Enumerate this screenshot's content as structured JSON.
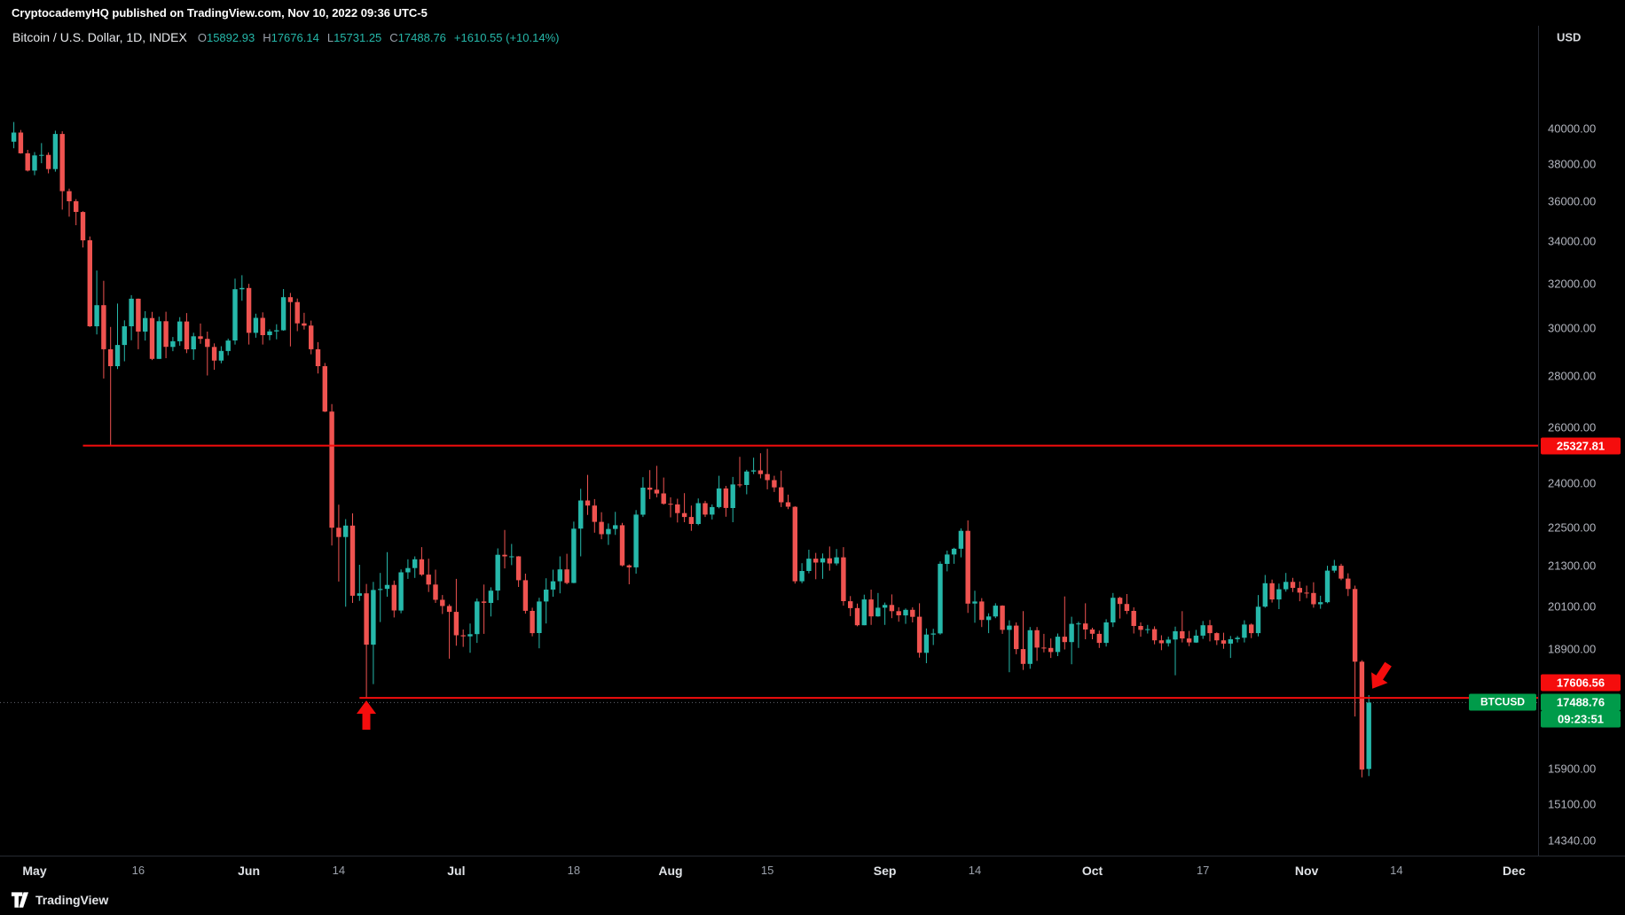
{
  "publish_bar": {
    "text": "CryptocademyHQ published on TradingView.com, Nov 10, 2022 09:36 UTC-5"
  },
  "header": {
    "symbol": "Bitcoin / U.S. Dollar, 1D, INDEX",
    "ohlc": [
      {
        "k": "O",
        "v": "15892.93"
      },
      {
        "k": "H",
        "v": "17676.14"
      },
      {
        "k": "L",
        "v": "15731.25"
      },
      {
        "k": "C",
        "v": "17488.76"
      }
    ],
    "change": "+1610.55 (+10.14%)"
  },
  "price_axis": {
    "currency": "USD",
    "ticks": [
      "40000.00",
      "38000.00",
      "36000.00",
      "34000.00",
      "32000.00",
      "30000.00",
      "28000.00",
      "26000.00",
      "24000.00",
      "22500.00",
      "21300.00",
      "20100.00",
      "18900.00",
      "15900.00",
      "15100.00",
      "14340.00"
    ],
    "labels": {
      "resistance": "25327.81",
      "support": "17606.56",
      "last_price": "17488.76",
      "countdown": "09:23:51",
      "symbol_tag": "BTCUSD"
    }
  },
  "time_axis": {
    "ticks": [
      {
        "label": "May",
        "day": 3,
        "major": true
      },
      {
        "label": "16",
        "day": 18,
        "major": false
      },
      {
        "label": "Jun",
        "day": 34,
        "major": true
      },
      {
        "label": "14",
        "day": 47,
        "major": false
      },
      {
        "label": "Jul",
        "day": 64,
        "major": true
      },
      {
        "label": "18",
        "day": 81,
        "major": false
      },
      {
        "label": "Aug",
        "day": 95,
        "major": true
      },
      {
        "label": "15",
        "day": 109,
        "major": false
      },
      {
        "label": "Sep",
        "day": 126,
        "major": true
      },
      {
        "label": "14",
        "day": 139,
        "major": false
      },
      {
        "label": "Oct",
        "day": 156,
        "major": true
      },
      {
        "label": "17",
        "day": 172,
        "major": false
      },
      {
        "label": "Nov",
        "day": 187,
        "major": true
      },
      {
        "label": "14",
        "day": 200,
        "major": false
      },
      {
        "label": "Dec",
        "day": 217,
        "major": true
      }
    ]
  },
  "watermark": {
    "brand": "TradingView"
  },
  "colors": {
    "up": "#26b8aa",
    "down": "#ef5350",
    "annotation": "#f50d0d",
    "badge_green": "#009b4a",
    "axis_text": "#b2b5be",
    "background": "#000000"
  },
  "chart_data": {
    "type": "candlestick",
    "symbol": "BTCUSD",
    "title": "Bitcoin / U.S. Dollar",
    "interval": "1D",
    "exchange": "INDEX",
    "start_date": "2022-04-28",
    "last_candle": {
      "open": 15892.93,
      "high": 17676.14,
      "low": 15731.25,
      "close": 17488.76,
      "change": 1610.55,
      "change_pct": 10.14
    },
    "y_axis": {
      "scale": "log",
      "visible_range": [
        13970,
        46400
      ]
    },
    "x_axis": {
      "visible_range": [
        "2022-04-28",
        "2022-12-05"
      ]
    },
    "horizontal_lines": [
      {
        "name": "resistance-line",
        "price": 25327.81,
        "from_day": 10
      },
      {
        "name": "support-line",
        "price": 17606.56,
        "from_day": 50
      }
    ],
    "annotations": [
      {
        "type": "arrow-up",
        "at": "june-low",
        "day": 51
      },
      {
        "type": "arrow-down",
        "at": "november-recovery",
        "day": 197
      }
    ],
    "candles": [
      [
        39250,
        40380,
        38880,
        39770
      ],
      [
        39770,
        39920,
        38580,
        38600
      ],
      [
        38600,
        38790,
        37600,
        37650
      ],
      [
        37650,
        38670,
        37400,
        38480
      ],
      [
        38480,
        39170,
        38050,
        38510
      ],
      [
        38510,
        38650,
        37500,
        37730
      ],
      [
        37730,
        39880,
        37590,
        39690
      ],
      [
        39690,
        39840,
        35590,
        36550
      ],
      [
        36550,
        36680,
        35230,
        36020
      ],
      [
        36020,
        36130,
        34800,
        35470
      ],
      [
        35470,
        35510,
        33700,
        34050
      ],
      [
        34050,
        34240,
        30050,
        30080
      ],
      [
        30080,
        32600,
        29730,
        31010
      ],
      [
        31010,
        32120,
        27900,
        29100
      ],
      [
        29100,
        30050,
        25327.81,
        28400
      ],
      [
        28400,
        31080,
        28280,
        29280
      ],
      [
        29280,
        30340,
        28600,
        30080
      ],
      [
        30080,
        31460,
        29480,
        31300
      ],
      [
        31300,
        31310,
        29100,
        29850
      ],
      [
        29850,
        30740,
        29470,
        30440
      ],
      [
        30440,
        30710,
        28650,
        28700
      ],
      [
        28700,
        30500,
        28700,
        30300
      ],
      [
        30300,
        30720,
        28730,
        29200
      ],
      [
        29200,
        29620,
        29020,
        29440
      ],
      [
        29440,
        30480,
        29250,
        30290
      ],
      [
        30290,
        30660,
        28940,
        29100
      ],
      [
        29100,
        29800,
        28660,
        29650
      ],
      [
        29650,
        30200,
        29330,
        29540
      ],
      [
        29540,
        29850,
        28020,
        29200
      ],
      [
        29200,
        29350,
        28250,
        28630
      ],
      [
        28630,
        29230,
        28520,
        29030
      ],
      [
        29030,
        29550,
        28850,
        29470
      ],
      [
        29470,
        32220,
        29300,
        31730
      ],
      [
        31730,
        32380,
        31210,
        31790
      ],
      [
        31790,
        31980,
        29300,
        29800
      ],
      [
        29800,
        30630,
        29590,
        30450
      ],
      [
        30450,
        30690,
        29300,
        29700
      ],
      [
        29700,
        29950,
        29480,
        29860
      ],
      [
        29860,
        30170,
        29520,
        29910
      ],
      [
        29910,
        31740,
        29890,
        31370
      ],
      [
        31370,
        31560,
        29220,
        31150
      ],
      [
        31150,
        31310,
        29870,
        30210
      ],
      [
        30210,
        30670,
        29940,
        30110
      ],
      [
        30110,
        30330,
        28890,
        29100
      ],
      [
        29100,
        29400,
        28100,
        28400
      ],
      [
        28400,
        28530,
        26580,
        26600
      ],
      [
        26600,
        26890,
        21930,
        22500
      ],
      [
        22500,
        23260,
        20820,
        22200
      ],
      [
        22200,
        22780,
        20080,
        22570
      ],
      [
        22570,
        22970,
        20190,
        20400
      ],
      [
        20400,
        21330,
        20250,
        20470
      ],
      [
        20470,
        20750,
        17606.56,
        19010
      ],
      [
        19010,
        20810,
        17960,
        20570
      ],
      [
        20570,
        21080,
        19640,
        20600
      ],
      [
        20600,
        21720,
        20370,
        20720
      ],
      [
        20720,
        20850,
        19770,
        19970
      ],
      [
        19970,
        21190,
        19890,
        21100
      ],
      [
        21100,
        21500,
        20900,
        21230
      ],
      [
        21230,
        21590,
        20930,
        21500
      ],
      [
        21500,
        21880,
        20990,
        21030
      ],
      [
        21030,
        21520,
        20510,
        20730
      ],
      [
        20730,
        21180,
        20190,
        20280
      ],
      [
        20280,
        20420,
        19870,
        20100
      ],
      [
        20100,
        20150,
        18630,
        19930
      ],
      [
        19930,
        20900,
        18980,
        19270
      ],
      [
        19270,
        19430,
        18950,
        19240
      ],
      [
        19240,
        19600,
        18790,
        19300
      ],
      [
        19300,
        20320,
        19060,
        20230
      ],
      [
        20230,
        20730,
        19310,
        20190
      ],
      [
        20190,
        20650,
        19800,
        20550
      ],
      [
        20550,
        21840,
        20270,
        21640
      ],
      [
        21640,
        22430,
        21220,
        21590
      ],
      [
        21590,
        21980,
        21320,
        21590
      ],
      [
        21590,
        21600,
        20660,
        20860
      ],
      [
        20860,
        21060,
        19880,
        19960
      ],
      [
        19960,
        20050,
        19240,
        19330
      ],
      [
        19330,
        20340,
        18910,
        20230
      ],
      [
        20230,
        20920,
        19600,
        20580
      ],
      [
        20580,
        21180,
        20370,
        20830
      ],
      [
        20830,
        21590,
        20470,
        21190
      ],
      [
        21190,
        21670,
        20740,
        20780
      ],
      [
        20780,
        22700,
        20770,
        22470
      ],
      [
        22470,
        23800,
        21590,
        23400
      ],
      [
        23400,
        24280,
        22920,
        23230
      ],
      [
        23230,
        23450,
        22340,
        22690
      ],
      [
        22690,
        23010,
        22130,
        22290
      ],
      [
        22290,
        22640,
        21950,
        22460
      ],
      [
        22460,
        23020,
        22270,
        22580
      ],
      [
        22580,
        22660,
        21280,
        21310
      ],
      [
        21310,
        21340,
        20740,
        21250
      ],
      [
        21250,
        23080,
        21060,
        22930
      ],
      [
        22930,
        24200,
        22850,
        23840
      ],
      [
        23840,
        24450,
        23450,
        23770
      ],
      [
        23770,
        24600,
        23510,
        23640
      ],
      [
        23640,
        24190,
        23260,
        23290
      ],
      [
        23290,
        23510,
        22840,
        23270
      ],
      [
        23270,
        23460,
        22670,
        22980
      ],
      [
        22980,
        23650,
        22680,
        22850
      ],
      [
        22850,
        23230,
        22400,
        22620
      ],
      [
        22620,
        23470,
        22580,
        23310
      ],
      [
        23310,
        23390,
        22850,
        22930
      ],
      [
        22930,
        23270,
        22770,
        23180
      ],
      [
        23180,
        24250,
        23140,
        23810
      ],
      [
        23810,
        23900,
        22860,
        23150
      ],
      [
        23150,
        24210,
        22680,
        23950
      ],
      [
        23950,
        24920,
        23850,
        23930
      ],
      [
        23930,
        24460,
        23610,
        24400
      ],
      [
        24400,
        24890,
        24310,
        24440
      ],
      [
        24440,
        25050,
        24160,
        24310
      ],
      [
        24310,
        25210,
        23780,
        24100
      ],
      [
        24100,
        24250,
        23690,
        23850
      ],
      [
        23850,
        24430,
        23180,
        23340
      ],
      [
        23340,
        23600,
        23110,
        23190
      ],
      [
        23190,
        23210,
        20760,
        20830
      ],
      [
        20830,
        21380,
        20770,
        21140
      ],
      [
        21140,
        21800,
        21070,
        21520
      ],
      [
        21520,
        21700,
        20890,
        21400
      ],
      [
        21400,
        21680,
        20900,
        21530
      ],
      [
        21530,
        21900,
        21150,
        21370
      ],
      [
        21370,
        21820,
        21310,
        21560
      ],
      [
        21560,
        21880,
        20110,
        20240
      ],
      [
        20240,
        20390,
        19810,
        20040
      ],
      [
        20040,
        20170,
        19520,
        19550
      ],
      [
        19550,
        20430,
        19550,
        20290
      ],
      [
        20290,
        20580,
        19560,
        19800
      ],
      [
        19800,
        20480,
        19790,
        20050
      ],
      [
        20050,
        20200,
        19560,
        20130
      ],
      [
        20130,
        20440,
        19750,
        19950
      ],
      [
        19950,
        20060,
        19650,
        19830
      ],
      [
        19830,
        20030,
        19590,
        19990
      ],
      [
        19990,
        20060,
        19630,
        19790
      ],
      [
        19790,
        20180,
        18660,
        18790
      ],
      [
        18790,
        19460,
        18510,
        19290
      ],
      [
        19290,
        19450,
        19000,
        19320
      ],
      [
        19320,
        21430,
        19290,
        21360
      ],
      [
        21360,
        21770,
        21130,
        21650
      ],
      [
        21650,
        21860,
        21360,
        21830
      ],
      [
        21830,
        22480,
        21560,
        22400
      ],
      [
        22400,
        22740,
        19900,
        20170
      ],
      [
        20170,
        20550,
        19620,
        20230
      ],
      [
        20230,
        20330,
        19500,
        19700
      ],
      [
        19700,
        19890,
        19330,
        19800
      ],
      [
        19800,
        20180,
        19750,
        20110
      ],
      [
        20110,
        20120,
        19310,
        19420
      ],
      [
        19420,
        19690,
        18270,
        19540
      ],
      [
        19540,
        19630,
        18750,
        18890
      ],
      [
        18890,
        19950,
        18330,
        18490
      ],
      [
        18490,
        19500,
        18360,
        19410
      ],
      [
        19410,
        19500,
        18570,
        18930
      ],
      [
        18930,
        19310,
        18800,
        18920
      ],
      [
        18920,
        19180,
        18650,
        18810
      ],
      [
        18810,
        19320,
        18700,
        19230
      ],
      [
        19230,
        20380,
        18880,
        19080
      ],
      [
        19080,
        19790,
        18480,
        19590
      ],
      [
        19590,
        19650,
        18920,
        19600
      ],
      [
        19600,
        20180,
        19160,
        19430
      ],
      [
        19430,
        19480,
        19160,
        19310
      ],
      [
        19310,
        19400,
        18920,
        19060
      ],
      [
        19060,
        19720,
        18960,
        19630
      ],
      [
        19630,
        20480,
        19500,
        20340
      ],
      [
        20340,
        20370,
        19740,
        20160
      ],
      [
        20160,
        20450,
        19870,
        19960
      ],
      [
        19960,
        20060,
        19320,
        19530
      ],
      [
        19530,
        19630,
        19230,
        19420
      ],
      [
        19420,
        19560,
        19320,
        19440
      ],
      [
        19440,
        19520,
        19020,
        19130
      ],
      [
        19130,
        19270,
        18860,
        19050
      ],
      [
        19050,
        19230,
        18960,
        19150
      ],
      [
        19150,
        19510,
        18190,
        19380
      ],
      [
        19380,
        19950,
        19070,
        19180
      ],
      [
        19180,
        19390,
        18970,
        19070
      ],
      [
        19070,
        19420,
        19060,
        19260
      ],
      [
        19260,
        19670,
        19170,
        19550
      ],
      [
        19550,
        19700,
        19100,
        19330
      ],
      [
        19330,
        19350,
        19000,
        19130
      ],
      [
        19130,
        19340,
        18900,
        19040
      ],
      [
        19040,
        19250,
        18650,
        19160
      ],
      [
        19160,
        19250,
        19070,
        19200
      ],
      [
        19200,
        19690,
        19070,
        19570
      ],
      [
        19570,
        19600,
        19190,
        19330
      ],
      [
        19330,
        20420,
        19240,
        20080
      ],
      [
        20080,
        21020,
        20050,
        20770
      ],
      [
        20770,
        20880,
        20200,
        20290
      ],
      [
        20290,
        20760,
        20010,
        20590
      ],
      [
        20590,
        21080,
        20520,
        20810
      ],
      [
        20810,
        20930,
        20510,
        20630
      ],
      [
        20630,
        20820,
        20240,
        20490
      ],
      [
        20490,
        20700,
        20330,
        20480
      ],
      [
        20480,
        20800,
        20050,
        20150
      ],
      [
        20150,
        20400,
        20020,
        20210
      ],
      [
        20210,
        21300,
        20180,
        21150
      ],
      [
        21150,
        21480,
        21090,
        21300
      ],
      [
        21300,
        21360,
        20860,
        20910
      ],
      [
        20910,
        21070,
        20390,
        20600
      ],
      [
        20600,
        20700,
        17140,
        18550
      ],
      [
        18550,
        18590,
        15700,
        15880
      ],
      [
        15892.93,
        17676.14,
        15731.25,
        17488.76
      ]
    ]
  }
}
